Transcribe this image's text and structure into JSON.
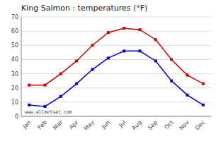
{
  "chart_data": {
    "type": "line",
    "title": "King Salmon : temperatures (°F)",
    "categories": [
      "Jan",
      "Feb",
      "Mar",
      "Apr",
      "May",
      "Jun",
      "Jul",
      "Aug",
      "Sep",
      "Oct",
      "Nov",
      "Dec"
    ],
    "series": [
      {
        "color": "#cc0000",
        "marker": "square",
        "values": [
          22,
          22,
          30,
          39,
          50,
          59,
          62,
          61,
          54,
          40,
          29,
          23
        ]
      },
      {
        "color": "#0000cc",
        "marker": "square",
        "values": [
          8,
          7,
          14,
          23,
          33,
          41,
          46,
          46,
          39,
          25,
          15,
          8
        ]
      }
    ],
    "ylim": [
      0,
      70
    ],
    "yticks": [
      0,
      10,
      20,
      30,
      40,
      50,
      60,
      70
    ],
    "grid": true,
    "annotations": [
      "www.allmetsat.com"
    ]
  }
}
